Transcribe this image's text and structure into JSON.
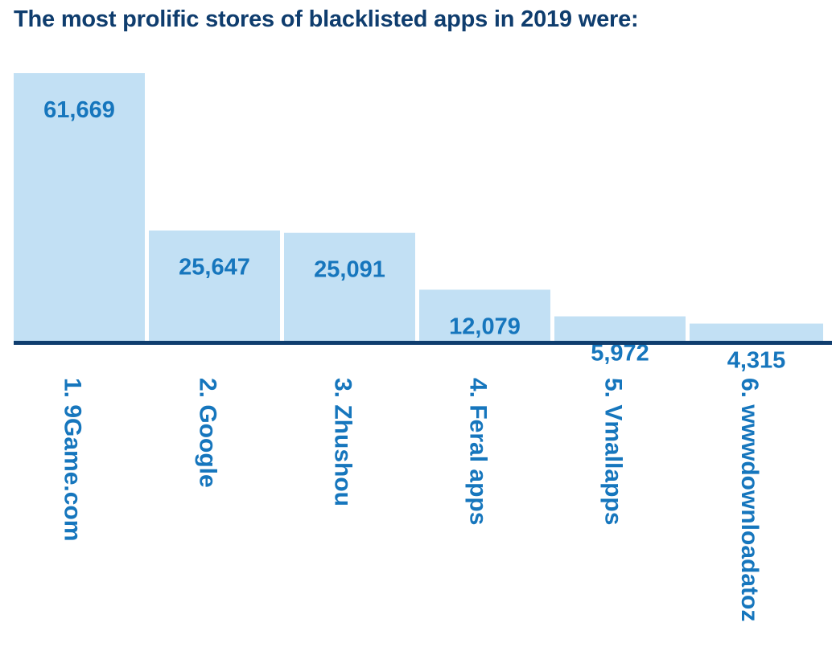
{
  "chart_data": {
    "type": "bar",
    "title": "The most prolific stores of blacklisted apps in 2019 were:",
    "categories": [
      "1. 9Game.com",
      "2. Google",
      "3. Zhushou",
      "4. Feral apps",
      "5. Vmallapps",
      "6. wwwdownloadatoz"
    ],
    "values": [
      61669,
      25647,
      25091,
      12079,
      5972,
      4315
    ],
    "value_labels": [
      "61,669",
      "25,647",
      "25,091",
      "12,079",
      "5,972",
      "4,315"
    ],
    "xlabel": "",
    "ylabel": "",
    "grid": false,
    "legend": "none",
    "colors": {
      "bar": "#c2e0f4",
      "value_label": "#1676bd",
      "category_label": "#1676bd",
      "title": "#0f3d6e",
      "baseline": "#0f3d6e"
    }
  }
}
